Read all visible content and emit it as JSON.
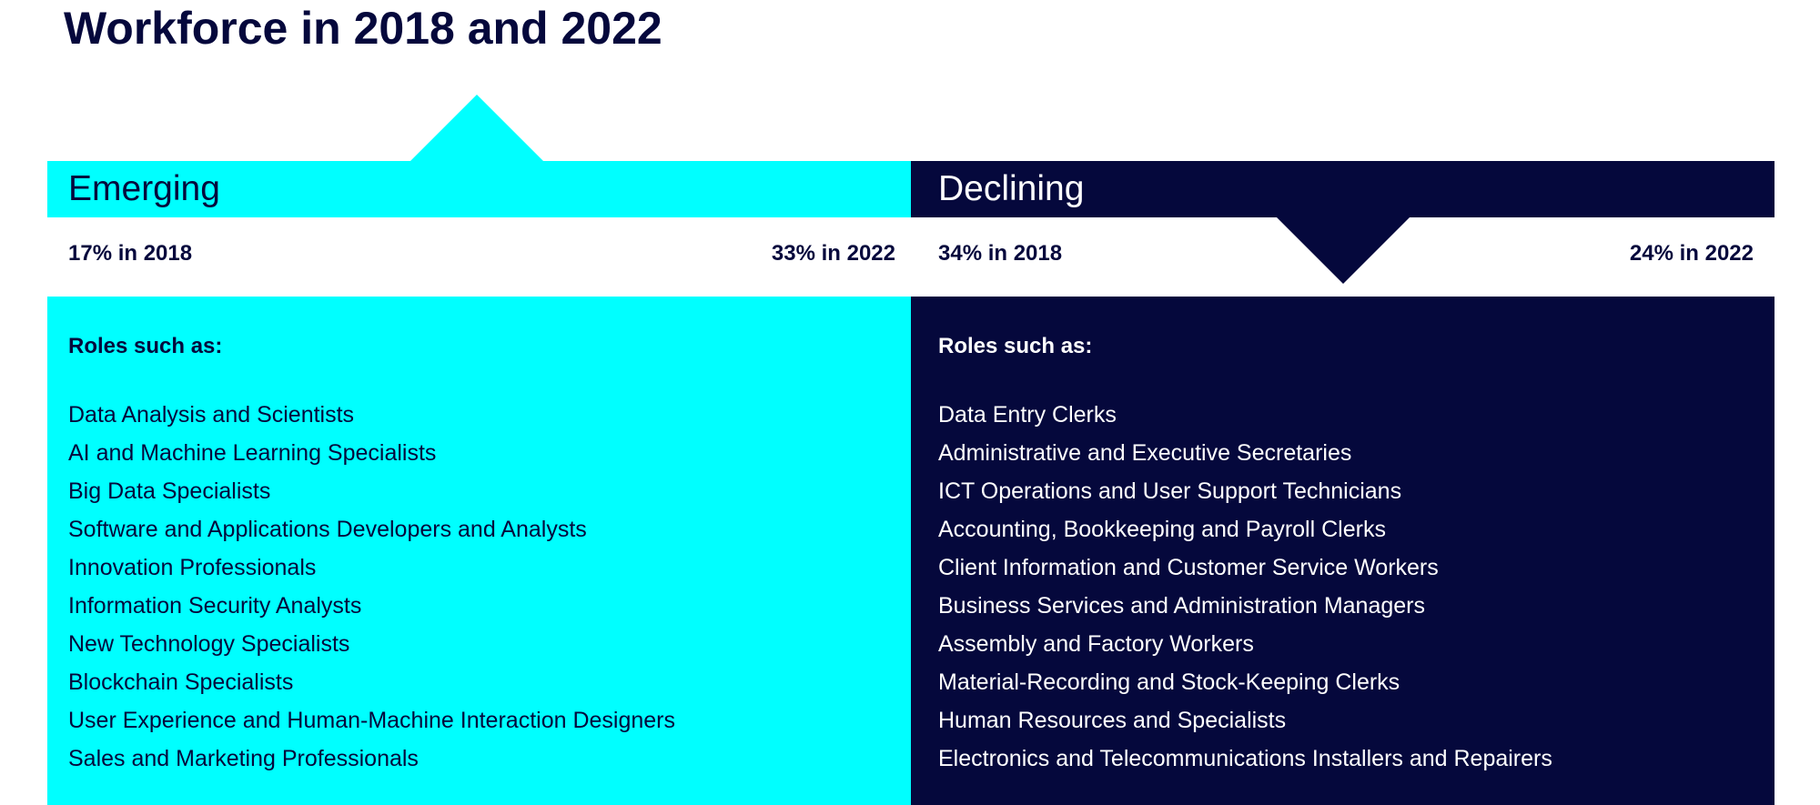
{
  "title": "Workforce in 2018 and 2022",
  "colors": {
    "emerging": "#00ffff",
    "declining": "#05083c",
    "text_dark": "#05083c",
    "text_light": "#ffffff"
  },
  "emerging": {
    "label": "Emerging",
    "stat_2018": "17% in 2018",
    "stat_2022": "33% in 2022",
    "trend_icon": "up-arrow",
    "roles_heading": "Roles such as:",
    "roles": [
      "Data Analysis and Scientists",
      "AI and Machine Learning Specialists",
      "Big Data Specialists",
      "Software and Applications Developers and Analysts",
      "Innovation Professionals",
      "Information Security Analysts",
      "New Technology Specialists",
      "Blockchain Specialists",
      "User Experience and Human-Machine Interaction Designers",
      "Sales and Marketing Professionals"
    ]
  },
  "declining": {
    "label": "Declining",
    "stat_2018": "34% in 2018",
    "stat_2022": "24% in 2022",
    "trend_icon": "down-arrow",
    "roles_heading": "Roles such as:",
    "roles": [
      "Data Entry Clerks",
      "Administrative and Executive Secretaries",
      "ICT Operations and User Support Technicians",
      "Accounting, Bookkeeping and Payroll Clerks",
      "Client Information and Customer Service Workers",
      "Business Services and Administration Managers",
      "Assembly and Factory Workers",
      "Material-Recording and Stock-Keeping Clerks",
      "Human Resources and Specialists",
      "Electronics and Telecommunications Installers and Repairers"
    ]
  }
}
